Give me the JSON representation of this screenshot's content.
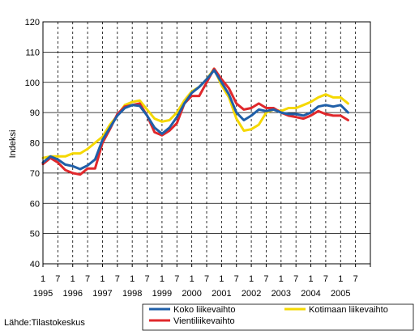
{
  "chart_data": {
    "type": "line",
    "title": "",
    "xlabel": "",
    "ylabel": "Indeksi",
    "ylim": [
      40,
      120
    ],
    "yticks": [
      40,
      50,
      60,
      70,
      80,
      90,
      100,
      110,
      120
    ],
    "x_month_labels": [
      "1",
      "7",
      "1",
      "7",
      "1",
      "7",
      "1",
      "7",
      "1",
      "7",
      "1",
      "7",
      "1",
      "7",
      "1",
      "7",
      "1",
      "7",
      "1",
      "7",
      "1",
      "7"
    ],
    "x_year_labels": [
      "1995",
      "1996",
      "1997",
      "1998",
      "1999",
      "2000",
      "2001",
      "2002",
      "2003",
      "2004",
      "2005"
    ],
    "grid": "vertical dashed at Jan/Jul, horizontal solid",
    "legend_placement": "bottom-right",
    "source": "Lähde:Tilastokeskus",
    "series": [
      {
        "name": "Koko liikevaihto",
        "color": "#1f5fa8",
        "points": [
          [
            "1995-01",
            73.5
          ],
          [
            "1995-04",
            75.5
          ],
          [
            "1995-07",
            74.5
          ],
          [
            "1995-10",
            72.8
          ],
          [
            "1996-01",
            72.3
          ],
          [
            "1996-04",
            71.3
          ],
          [
            "1996-07",
            72.5
          ],
          [
            "1996-10",
            74.5
          ],
          [
            "1997-01",
            81
          ],
          [
            "1997-04",
            85
          ],
          [
            "1997-07",
            89
          ],
          [
            "1997-10",
            91.5
          ],
          [
            "1998-01",
            92.5
          ],
          [
            "1998-04",
            92.2
          ],
          [
            "1998-07",
            89
          ],
          [
            "1998-10",
            85
          ],
          [
            "1999-01",
            83
          ],
          [
            "1999-04",
            85
          ],
          [
            "1999-07",
            88.5
          ],
          [
            "1999-10",
            93
          ],
          [
            "2000-01",
            96.5
          ],
          [
            "2000-04",
            98.5
          ],
          [
            "2000-07",
            101
          ],
          [
            "2000-10",
            104
          ],
          [
            "2001-01",
            100
          ],
          [
            "2001-04",
            96
          ],
          [
            "2001-07",
            90
          ],
          [
            "2001-10",
            87.5
          ],
          [
            "2002-01",
            89
          ],
          [
            "2002-04",
            91
          ],
          [
            "2002-07",
            90.5
          ],
          [
            "2002-10",
            91
          ],
          [
            "2003-01",
            90
          ],
          [
            "2003-04",
            89.5
          ],
          [
            "2003-07",
            89.5
          ],
          [
            "2003-10",
            89
          ],
          [
            "2004-01",
            90
          ],
          [
            "2004-04",
            92
          ],
          [
            "2004-07",
            92.5
          ],
          [
            "2004-10",
            92
          ],
          [
            "2005-01",
            92.5
          ],
          [
            "2005-04",
            90
          ]
        ]
      },
      {
        "name": "Kotimaan liikevaihto",
        "color": "#f5d800",
        "points": [
          [
            "1995-01",
            75
          ],
          [
            "1995-04",
            75.5
          ],
          [
            "1995-07",
            75.5
          ],
          [
            "1995-10",
            75.5
          ],
          [
            "1996-01",
            76.5
          ],
          [
            "1996-04",
            76.5
          ],
          [
            "1996-07",
            78
          ],
          [
            "1996-10",
            80
          ],
          [
            "1997-01",
            82
          ],
          [
            "1997-04",
            86
          ],
          [
            "1997-07",
            89
          ],
          [
            "1997-10",
            92.5
          ],
          [
            "1998-01",
            93.5
          ],
          [
            "1998-04",
            94
          ],
          [
            "1998-07",
            91
          ],
          [
            "1998-10",
            88
          ],
          [
            "1999-01",
            87
          ],
          [
            "1999-04",
            87.5
          ],
          [
            "1999-07",
            90
          ],
          [
            "1999-10",
            94
          ],
          [
            "2000-01",
            97
          ],
          [
            "2000-04",
            98.5
          ],
          [
            "2000-07",
            101
          ],
          [
            "2000-10",
            104.5
          ],
          [
            "2001-01",
            99
          ],
          [
            "2001-04",
            95
          ],
          [
            "2001-07",
            88
          ],
          [
            "2001-10",
            84
          ],
          [
            "2002-01",
            84.5
          ],
          [
            "2002-04",
            86
          ],
          [
            "2002-07",
            90
          ],
          [
            "2002-10",
            91
          ],
          [
            "2003-01",
            90.5
          ],
          [
            "2003-04",
            91.5
          ],
          [
            "2003-07",
            91.5
          ],
          [
            "2003-10",
            92.5
          ],
          [
            "2004-01",
            93.5
          ],
          [
            "2004-04",
            95
          ],
          [
            "2004-07",
            96
          ],
          [
            "2004-10",
            95
          ],
          [
            "2005-01",
            95
          ],
          [
            "2005-04",
            93
          ]
        ]
      },
      {
        "name": "Vientiliikevaihto",
        "color": "#e0282c",
        "points": [
          [
            "1995-01",
            73
          ],
          [
            "1995-04",
            75
          ],
          [
            "1995-07",
            73.5
          ],
          [
            "1995-10",
            71
          ],
          [
            "1996-01",
            70
          ],
          [
            "1996-04",
            69.5
          ],
          [
            "1996-07",
            71.5
          ],
          [
            "1996-10",
            71.5
          ],
          [
            "1997-01",
            80
          ],
          [
            "1997-04",
            84.5
          ],
          [
            "1997-07",
            89.5
          ],
          [
            "1997-10",
            92
          ],
          [
            "1998-01",
            92.5
          ],
          [
            "1998-04",
            93
          ],
          [
            "1998-07",
            89
          ],
          [
            "1998-10",
            83.5
          ],
          [
            "1999-01",
            82.5
          ],
          [
            "1999-04",
            84
          ],
          [
            "1999-07",
            86.5
          ],
          [
            "1999-10",
            93
          ],
          [
            "2000-01",
            95.5
          ],
          [
            "2000-04",
            95.5
          ],
          [
            "2000-07",
            100
          ],
          [
            "2000-10",
            104.5
          ],
          [
            "2001-01",
            101
          ],
          [
            "2001-04",
            98
          ],
          [
            "2001-07",
            93
          ],
          [
            "2001-10",
            91
          ],
          [
            "2002-01",
            91.5
          ],
          [
            "2002-04",
            93
          ],
          [
            "2002-07",
            91.5
          ],
          [
            "2002-10",
            91.5
          ],
          [
            "2003-01",
            90
          ],
          [
            "2003-04",
            89
          ],
          [
            "2003-07",
            88.5
          ],
          [
            "2003-10",
            88
          ],
          [
            "2004-01",
            89
          ],
          [
            "2004-04",
            90.5
          ],
          [
            "2004-07",
            89.5
          ],
          [
            "2004-10",
            89
          ],
          [
            "2005-01",
            89
          ],
          [
            "2005-04",
            87.5
          ]
        ]
      }
    ]
  }
}
